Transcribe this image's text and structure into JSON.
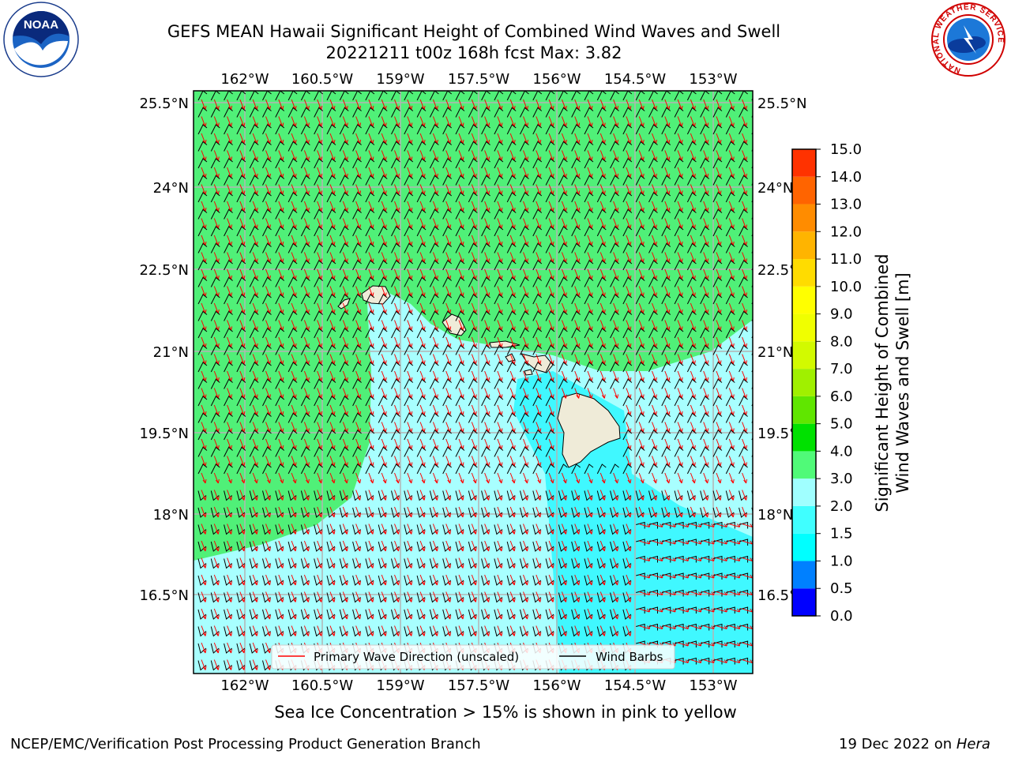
{
  "title_line1": "GEFS MEAN Hawaii Significant Height of Combined Wind Waves and Swell",
  "title_line2": "20221211 t00z 168h fcst   Max: 3.82",
  "lon_ticks": [
    "162°W",
    "160.5°W",
    "159°W",
    "157.5°W",
    "156°W",
    "154.5°W",
    "153°W"
  ],
  "lat_ticks": [
    "25.5°N",
    "24°N",
    "22.5°N",
    "21°N",
    "19.5°N",
    "18°N",
    "16.5°N"
  ],
  "legend": {
    "primary_wave": "Primary Wave Direction (unscaled)",
    "wind_barbs": "Wind Barbs"
  },
  "colorbar": {
    "label_line1": "Significant Height of Combined",
    "label_line2": "Wind Waves and Swell [m]",
    "ticks": [
      "0.0",
      "0.5",
      "1.0",
      "1.5",
      "2.0",
      "3.0",
      "4.0",
      "5.0",
      "6.0",
      "7.0",
      "8.0",
      "9.0",
      "10.0",
      "11.0",
      "12.0",
      "13.0",
      "14.0",
      "15.0"
    ],
    "colors": [
      "#0000ff",
      "#0080ff",
      "#00ffff",
      "#40ffff",
      "#a0ffff",
      "#50fa78",
      "#00e100",
      "#60e600",
      "#a0f000",
      "#d2fa00",
      "#f0ff00",
      "#ffff00",
      "#ffdc00",
      "#ffb400",
      "#ff8c00",
      "#ff6400",
      "#ff3200",
      "#ff0000"
    ]
  },
  "map": {
    "land_color": "#efebd8",
    "green_color": "#50f078",
    "light_cyan": "#a8ffff",
    "cyan": "#40f8ff",
    "wave_arrow_color": "#ff0000",
    "barb_color": "#000000"
  },
  "sea_ice_note": "Sea Ice Concentration > 15% is shown in pink to yellow",
  "footer_left": "NCEP/EMC/Verification Post Processing Product Generation Branch",
  "footer_date": "19 Dec 2022 on ",
  "footer_host": "Hera",
  "logos": {
    "noaa": "NOAA",
    "nws_ring": "NATIONAL WEATHER SERVICE"
  }
}
